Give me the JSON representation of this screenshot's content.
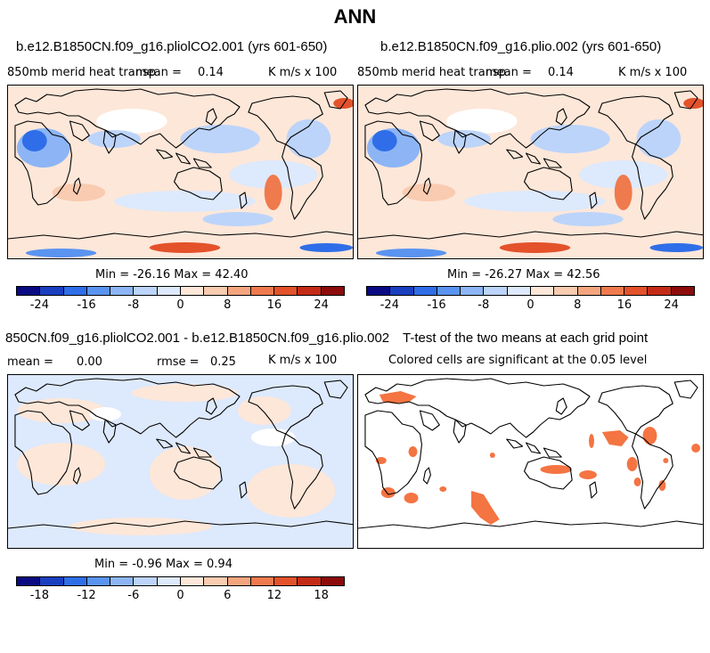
{
  "figure": {
    "title": "ANN"
  },
  "panel_a": {
    "case": "b.e12.B1850CN.f09_g16.pliolCO2.001 (yrs 601-650)",
    "variable": "850mb merid heat transp",
    "mean_label": "mean =",
    "mean_value": "0.14",
    "units": "K m/s x 100",
    "minmax": "Min = -26.16 Max =  42.40",
    "colorbar_ticks": [
      "-24",
      "-16",
      "-8",
      "0",
      "8",
      "16",
      "24"
    ]
  },
  "panel_b": {
    "case": "b.e12.B1850CN.f09_g16.plio.002 (yrs 601-650)",
    "variable": "850mb merid heat transp",
    "mean_label": "mean =",
    "mean_value": "0.14",
    "units": "K m/s x 100",
    "minmax": "Min = -26.27 Max =  42.56",
    "colorbar_ticks": [
      "-24",
      "-16",
      "-8",
      "0",
      "8",
      "16",
      "24"
    ]
  },
  "panel_c": {
    "case": "850CN.f09_g16.pliolCO2.001 - b.e12.B1850CN.f09_g16.plio.002",
    "mean_label": "mean =",
    "mean_value": "0.00",
    "rmse_label": "rmse =",
    "rmse_value": "0.25",
    "units": "K m/s x 100",
    "minmax": "Min = -0.96 Max =  0.94",
    "colorbar_ticks": [
      "-18",
      "-12",
      "-6",
      "0",
      "6",
      "12",
      "18"
    ]
  },
  "panel_d": {
    "title": "T-test of the two means at each grid point",
    "subtitle": "Colored cells are significant at the 0.05 level"
  },
  "colors": {
    "colorbar": [
      "#0a0a82",
      "#1a3fbf",
      "#2f6ee8",
      "#5a94f0",
      "#8db5f5",
      "#bcd4fa",
      "#dde9fc",
      "#fde7d9",
      "#f9cbb0",
      "#f5a57e",
      "#ef7a4d",
      "#e3522b",
      "#c42b16",
      "#8c0b0b"
    ],
    "significance": "#f47442",
    "land_outline": "#000000"
  }
}
